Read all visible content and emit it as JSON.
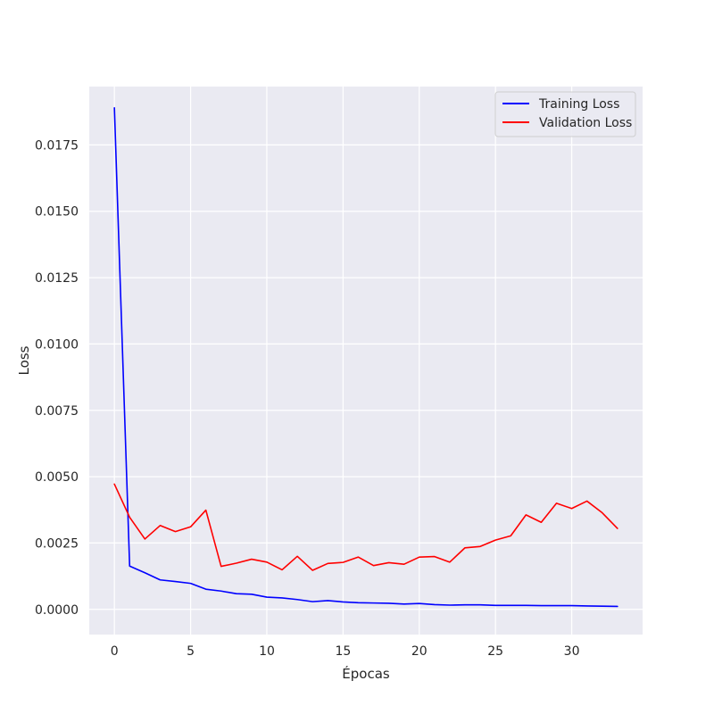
{
  "chart_data": {
    "type": "line",
    "title": "",
    "xlabel": "Épocas",
    "ylabel": "Loss",
    "xlim": [
      -1.65,
      34.65
    ],
    "ylim": [
      -0.00095,
      0.0197
    ],
    "x_ticks": [
      0,
      5,
      10,
      15,
      20,
      25,
      30
    ],
    "y_ticks": [
      0.0,
      0.0025,
      0.005,
      0.0075,
      0.01,
      0.0125,
      0.015,
      0.0175
    ],
    "y_tick_labels": [
      "0.0000",
      "0.0025",
      "0.0050",
      "0.0075",
      "0.0100",
      "0.0125",
      "0.0150",
      "0.0175"
    ],
    "grid": true,
    "legend_position": "top-right",
    "background": "#EAEAF2",
    "x": [
      0,
      1,
      2,
      3,
      4,
      5,
      6,
      7,
      8,
      9,
      10,
      11,
      12,
      13,
      14,
      15,
      16,
      17,
      18,
      19,
      20,
      21,
      22,
      23,
      24,
      25,
      26,
      27,
      28,
      29,
      30,
      31,
      32,
      33
    ],
    "series": [
      {
        "name": "Training Loss",
        "color": "#0000FF",
        "values": [
          0.0189,
          0.00163,
          0.00138,
          0.00111,
          0.00105,
          0.00098,
          0.00076,
          0.00069,
          0.00059,
          0.00057,
          0.00046,
          0.00043,
          0.00037,
          0.00029,
          0.00033,
          0.00028,
          0.00025,
          0.00024,
          0.00023,
          0.0002,
          0.00022,
          0.00018,
          0.00016,
          0.00017,
          0.00017,
          0.00015,
          0.00015,
          0.00015,
          0.00014,
          0.00014,
          0.00014,
          0.00013,
          0.00012,
          0.00011
        ]
      },
      {
        "name": "Validation Loss",
        "color": "#FF0000",
        "values": [
          0.00472,
          0.00347,
          0.00265,
          0.00316,
          0.00293,
          0.00311,
          0.00374,
          0.00162,
          0.00174,
          0.00189,
          0.00178,
          0.00149,
          0.002,
          0.00147,
          0.00173,
          0.00177,
          0.00197,
          0.00165,
          0.00176,
          0.0017,
          0.00197,
          0.00199,
          0.00178,
          0.00232,
          0.00237,
          0.00261,
          0.00277,
          0.00356,
          0.00328,
          0.004,
          0.0038,
          0.00408,
          0.00364,
          0.00305
        ]
      }
    ]
  }
}
